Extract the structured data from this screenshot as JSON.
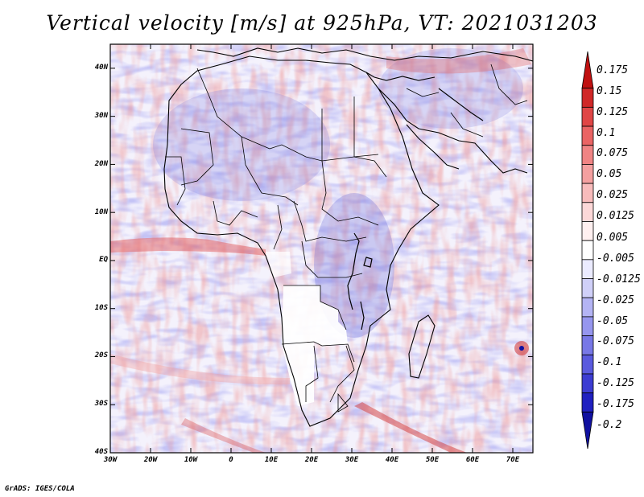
{
  "title": "Vertical velocity [m/s] at 925hPa, VT: 2021031203",
  "credit": "GrADS: IGES/COLA",
  "lat_labels": [
    "40N",
    "30N",
    "20N",
    "10N",
    "EQ",
    "10S",
    "20S",
    "30S",
    "40S"
  ],
  "lon_labels": [
    "30W",
    "20W",
    "10W",
    "0",
    "10E",
    "20E",
    "30E",
    "40E",
    "50E",
    "60E",
    "70E"
  ],
  "colorbar": {
    "labels": [
      "0.175",
      "0.15",
      "0.125",
      "0.1",
      "0.075",
      "0.05",
      "0.025",
      "0.0125",
      "0.005",
      "-0.005",
      "-0.0125",
      "-0.025",
      "-0.05",
      "-0.075",
      "-0.1",
      "-0.125",
      "-0.175",
      "-0.2"
    ],
    "colors": [
      "#c01010",
      "#d02828",
      "#e04646",
      "#ea6464",
      "#f08484",
      "#f4a0a0",
      "#f8bcbc",
      "#fcd8d8",
      "#fff0f0",
      "#ffffff",
      "#ebebff",
      "#d0d0f8",
      "#b4b4f4",
      "#9696ee",
      "#7878e6",
      "#5a5ade",
      "#3c3cd2",
      "#2020c0",
      "#1010a0"
    ]
  },
  "map_extent": {
    "lon_min": -30,
    "lon_max": 75,
    "lat_min": -40,
    "lat_max": 45
  }
}
